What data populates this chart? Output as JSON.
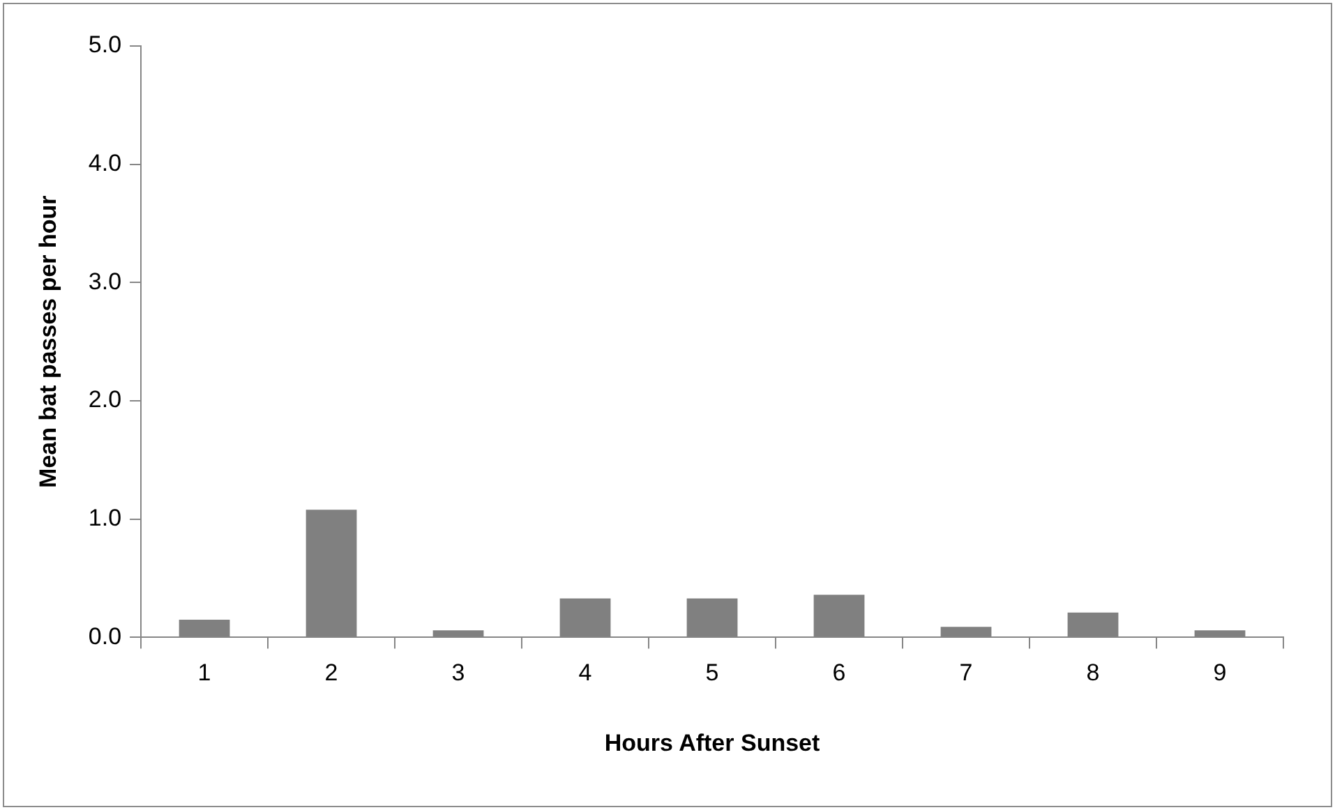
{
  "chart_data": {
    "type": "bar",
    "xlabel": "Hours After Sunset",
    "ylabel": "Mean bat passes per hour",
    "categories": [
      "1",
      "2",
      "3",
      "4",
      "5",
      "6",
      "7",
      "8",
      "9"
    ],
    "values": [
      0.15,
      1.08,
      0.06,
      0.33,
      0.33,
      0.36,
      0.09,
      0.21,
      0.06
    ],
    "color": "#808080",
    "ylim": [
      0,
      5
    ],
    "yticks": [
      {
        "value": 0,
        "label": "0.0"
      },
      {
        "value": 1,
        "label": "1.0"
      },
      {
        "value": 2,
        "label": "2.0"
      },
      {
        "value": 3,
        "label": "3.0"
      },
      {
        "value": 4,
        "label": "4.0"
      },
      {
        "value": 5,
        "label": "5.0"
      }
    ],
    "grid": false,
    "legend": false
  }
}
